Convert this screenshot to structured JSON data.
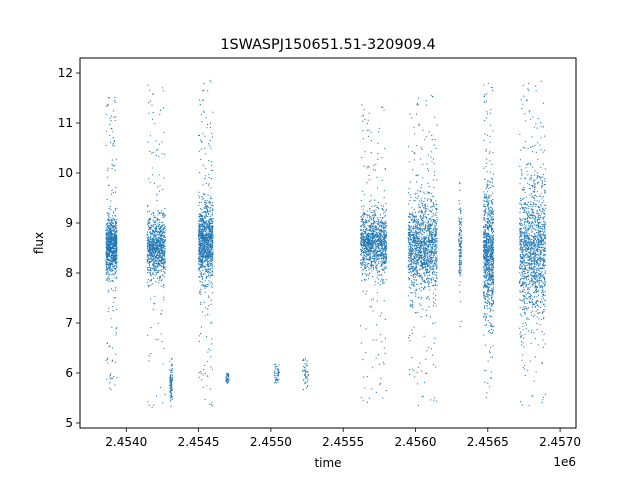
{
  "chart_data": {
    "type": "scatter",
    "title": "1SWASPJ150651.51-320909.4",
    "xlabel": "time",
    "ylabel": "flux",
    "x_offset_label": "1e6",
    "xlim": [
      2453680,
      2457110
    ],
    "ylim": [
      4.9,
      12.3
    ],
    "x_ticks": [
      2.454,
      2.4545,
      2.455,
      2.4555,
      2.456,
      2.4565,
      2.457
    ],
    "x_tick_labels": [
      "2.4540",
      "2.4545",
      "2.4550",
      "2.4555",
      "2.4560",
      "2.4565",
      "2.4570"
    ],
    "y_ticks": [
      5,
      6,
      7,
      8,
      9,
      10,
      11,
      12
    ],
    "y_tick_labels": [
      "5",
      "6",
      "7",
      "8",
      "9",
      "10",
      "11",
      "12"
    ],
    "grid": false,
    "marker_color": "#1f77b4",
    "series": [
      {
        "clusters": [
          {
            "x_range": [
              2453860,
              2453935
            ],
            "flux_center": 8.55,
            "core_half_spread": 0.45,
            "tail_low": 5.6,
            "tail_high": 11.6,
            "density": 1.0
          },
          {
            "x_range": [
              2454145,
              2454270
            ],
            "flux_center": 8.5,
            "core_half_spread": 0.5,
            "tail_low": 5.3,
            "tail_high": 11.8,
            "density": 1.0
          },
          {
            "x_range": [
              2454300,
              2454320
            ],
            "flux_center": 5.8,
            "core_half_spread": 0.3,
            "tail_low": 5.3,
            "tail_high": 6.3,
            "density": 0.1
          },
          {
            "x_range": [
              2454500,
              2454600
            ],
            "flux_center": 8.6,
            "core_half_spread": 0.6,
            "tail_low": 5.2,
            "tail_high": 11.9,
            "density": 1.2
          },
          {
            "x_range": [
              2454690,
              2454710
            ],
            "flux_center": 5.9,
            "core_half_spread": 0.2,
            "tail_low": 5.8,
            "tail_high": 6.0,
            "density": 0.05
          },
          {
            "x_range": [
              2455020,
              2455060
            ],
            "flux_center": 6.0,
            "core_half_spread": 0.2,
            "tail_low": 5.8,
            "tail_high": 6.2,
            "density": 0.05
          },
          {
            "x_range": [
              2455220,
              2455260
            ],
            "flux_center": 6.0,
            "core_half_spread": 0.3,
            "tail_low": 5.6,
            "tail_high": 6.3,
            "density": 0.05
          },
          {
            "x_range": [
              2455620,
              2455800
            ],
            "flux_center": 8.6,
            "core_half_spread": 0.5,
            "tail_low": 5.4,
            "tail_high": 11.4,
            "density": 1.3
          },
          {
            "x_range": [
              2455950,
              2456150
            ],
            "flux_center": 8.5,
            "core_half_spread": 0.7,
            "tail_low": 5.3,
            "tail_high": 11.6,
            "density": 1.5
          },
          {
            "x_range": [
              2456300,
              2456320
            ],
            "flux_center": 8.6,
            "core_half_spread": 0.6,
            "tail_low": 6.8,
            "tail_high": 10.0,
            "density": 0.15
          },
          {
            "x_range": [
              2456470,
              2456540
            ],
            "flux_center": 8.4,
            "core_half_spread": 1.0,
            "tail_low": 5.5,
            "tail_high": 11.8,
            "density": 1.0
          },
          {
            "x_range": [
              2456720,
              2456900
            ],
            "flux_center": 8.4,
            "core_half_spread": 1.1,
            "tail_low": 5.3,
            "tail_high": 11.9,
            "density": 1.5
          }
        ]
      }
    ]
  }
}
